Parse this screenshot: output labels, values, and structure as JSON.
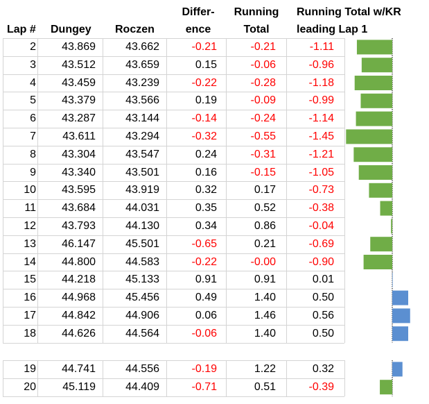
{
  "headers": {
    "lap": "Lap #",
    "dungey": "Dungey",
    "roczen": "Roczen",
    "difference_line1": "Differ-",
    "difference_line2": "ence",
    "running_line1": "Running",
    "running_line2": "Total",
    "kr_line1": "Running Total w/KR",
    "kr_line2": "leading Lap 1"
  },
  "colors": {
    "negative_text": "#ff0000",
    "negative_bar": "#70ad47",
    "positive_bar": "#5b8fd1"
  },
  "rows": [
    {
      "lap": "2",
      "dungey": "43.869",
      "roczen": "43.662",
      "difference": "-0.21",
      "running": "-0.21",
      "kr": "-1.11"
    },
    {
      "lap": "3",
      "dungey": "43.512",
      "roczen": "43.659",
      "difference": "0.15",
      "running": "-0.06",
      "kr": "-0.96"
    },
    {
      "lap": "4",
      "dungey": "43.459",
      "roczen": "43.239",
      "difference": "-0.22",
      "running": "-0.28",
      "kr": "-1.18"
    },
    {
      "lap": "5",
      "dungey": "43.379",
      "roczen": "43.566",
      "difference": "0.19",
      "running": "-0.09",
      "kr": "-0.99"
    },
    {
      "lap": "6",
      "dungey": "43.287",
      "roczen": "43.144",
      "difference": "-0.14",
      "running": "-0.24",
      "kr": "-1.14"
    },
    {
      "lap": "7",
      "dungey": "43.611",
      "roczen": "43.294",
      "difference": "-0.32",
      "running": "-0.55",
      "kr": "-1.45"
    },
    {
      "lap": "8",
      "dungey": "43.304",
      "roczen": "43.547",
      "difference": "0.24",
      "running": "-0.31",
      "kr": "-1.21"
    },
    {
      "lap": "9",
      "dungey": "43.340",
      "roczen": "43.501",
      "difference": "0.16",
      "running": "-0.15",
      "kr": "-1.05"
    },
    {
      "lap": "10",
      "dungey": "43.595",
      "roczen": "43.919",
      "difference": "0.32",
      "running": "0.17",
      "kr": "-0.73"
    },
    {
      "lap": "11",
      "dungey": "43.684",
      "roczen": "44.031",
      "difference": "0.35",
      "running": "0.52",
      "kr": "-0.38"
    },
    {
      "lap": "12",
      "dungey": "43.793",
      "roczen": "44.130",
      "difference": "0.34",
      "running": "0.86",
      "kr": "-0.04"
    },
    {
      "lap": "13",
      "dungey": "46.147",
      "roczen": "45.501",
      "difference": "-0.65",
      "running": "0.21",
      "kr": "-0.69"
    },
    {
      "lap": "14",
      "dungey": "44.800",
      "roczen": "44.583",
      "difference": "-0.22",
      "running": "-0.00",
      "kr": "-0.90"
    },
    {
      "lap": "15",
      "dungey": "44.218",
      "roczen": "45.133",
      "difference": "0.91",
      "running": "0.91",
      "kr": "0.01"
    },
    {
      "lap": "16",
      "dungey": "44.968",
      "roczen": "45.456",
      "difference": "0.49",
      "running": "1.40",
      "kr": "0.50"
    },
    {
      "lap": "17",
      "dungey": "44.842",
      "roczen": "44.906",
      "difference": "0.06",
      "running": "1.46",
      "kr": "0.56"
    },
    {
      "lap": "18",
      "dungey": "44.626",
      "roczen": "44.564",
      "difference": "-0.06",
      "running": "1.40",
      "kr": "0.50"
    },
    {
      "lap": "19",
      "dungey": "44.741",
      "roczen": "44.556",
      "difference": "-0.19",
      "running": "1.22",
      "kr": "0.32"
    },
    {
      "lap": "20",
      "dungey": "45.119",
      "roczen": "44.409",
      "difference": "-0.71",
      "running": "0.51",
      "kr": "-0.39"
    }
  ],
  "chart_data": {
    "type": "bar",
    "orientation": "horizontal",
    "categories": [
      "2",
      "3",
      "4",
      "5",
      "6",
      "7",
      "8",
      "9",
      "10",
      "11",
      "12",
      "13",
      "14",
      "15",
      "16",
      "17",
      "18",
      "19",
      "20"
    ],
    "values": [
      -1.11,
      -0.96,
      -1.18,
      -0.99,
      -1.14,
      -1.45,
      -1.21,
      -1.05,
      -0.73,
      -0.38,
      -0.04,
      -0.69,
      -0.9,
      0.01,
      0.5,
      0.56,
      0.5,
      0.32,
      -0.39
    ],
    "negative_color": "#70ad47",
    "positive_color": "#5b8fd1",
    "axis_style": "dotted"
  }
}
